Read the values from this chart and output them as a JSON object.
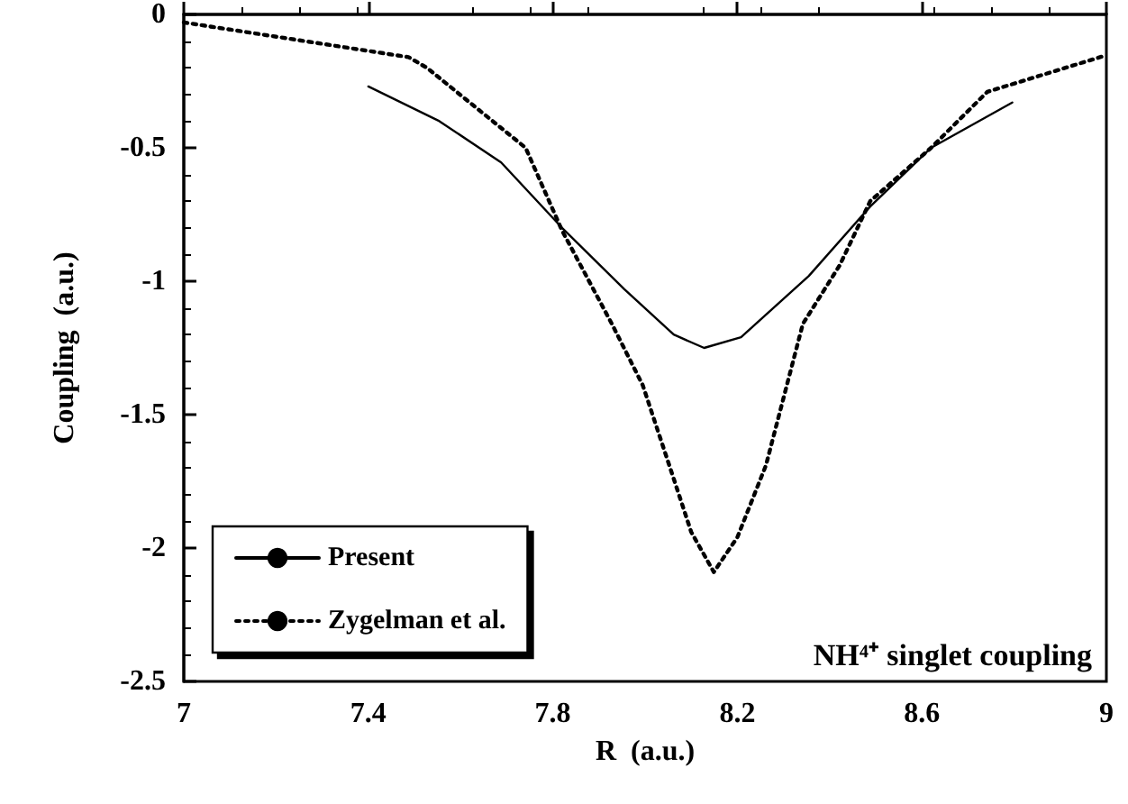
{
  "chart_data": {
    "type": "line",
    "xlabel": "R  (a.u.)",
    "ylabel": "Coupling  (a.u.)",
    "xlim": [
      7,
      9
    ],
    "xticks": [
      7,
      7.4,
      7.8,
      8.2,
      8.6,
      9
    ],
    "ylim": [
      -2.5,
      0
    ],
    "yticks": [
      -2.5,
      -2,
      -1.5,
      -1,
      -0.5,
      0
    ],
    "grid": false,
    "legend": "bottom left",
    "marker": "none",
    "annotations": [
      "NH⁴⁺ singlet coupling"
    ],
    "series": [
      {
        "name": "Present",
        "color": "#000000",
        "line_style": "solid",
        "x": [
          7.4,
          7.554,
          7.688,
          7.82,
          7.955,
          8.062,
          8.128,
          8.208,
          8.355,
          8.488,
          8.62,
          8.796
        ],
        "values": [
          -0.27,
          -0.4,
          -0.555,
          -0.8,
          -1.03,
          -1.2,
          -1.25,
          -1.21,
          -0.98,
          -0.72,
          -0.5,
          -0.33
        ]
      },
      {
        "name": "Zygelman et al.",
        "color": "#000000",
        "line_style": "dotted",
        "x": [
          7.0,
          7.487,
          7.527,
          7.741,
          7.82,
          7.928,
          7.995,
          8.062,
          8.1,
          8.149,
          8.2,
          8.262,
          8.342,
          8.422,
          8.488,
          8.62,
          8.742,
          8.996
        ],
        "values": [
          -0.03,
          -0.16,
          -0.2,
          -0.5,
          -0.81,
          -1.16,
          -1.39,
          -1.74,
          -1.94,
          -2.09,
          -1.96,
          -1.69,
          -1.16,
          -0.94,
          -0.7,
          -0.5,
          -0.29,
          -0.155
        ]
      }
    ]
  }
}
